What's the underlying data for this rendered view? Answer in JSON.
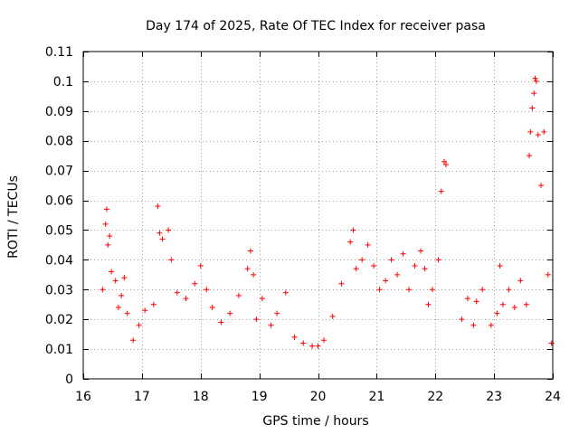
{
  "chart_data": {
    "type": "scatter",
    "title": "Day 174 of 2025, Rate Of TEC Index for receiver pasa",
    "xlabel": "GPS time / hours",
    "ylabel": "ROTI / TECUs",
    "xlim": [
      16,
      24
    ],
    "ylim": [
      0,
      0.11
    ],
    "xticks": [
      16,
      17,
      18,
      19,
      20,
      21,
      22,
      23,
      24
    ],
    "xtick_labels": [
      "16",
      "17",
      "18",
      "19",
      "20",
      "21",
      "22",
      "23",
      "24"
    ],
    "yticks": [
      0,
      0.01,
      0.02,
      0.03,
      0.04,
      0.05,
      0.06,
      0.07,
      0.08,
      0.09,
      0.1,
      0.11
    ],
    "ytick_labels": [
      "0",
      "0.01",
      "0.02",
      "0.03",
      "0.04",
      "0.05",
      "0.06",
      "0.07",
      "0.08",
      "0.09",
      "0.1",
      "0.11"
    ],
    "grid": true,
    "marker": "+",
    "marker_color": "#ff0000",
    "series": [
      {
        "name": "ROTI",
        "x": [
          16.33,
          16.38,
          16.4,
          16.42,
          16.45,
          16.48,
          16.55,
          16.6,
          16.65,
          16.7,
          16.75,
          16.85,
          16.95,
          17.05,
          17.2,
          17.27,
          17.3,
          17.35,
          17.45,
          17.5,
          17.6,
          17.75,
          17.9,
          18.0,
          18.1,
          18.2,
          18.35,
          18.5,
          18.65,
          18.8,
          18.85,
          18.9,
          18.95,
          19.05,
          19.2,
          19.3,
          19.45,
          19.6,
          19.75,
          19.9,
          20.0,
          20.1,
          20.25,
          20.4,
          20.55,
          20.6,
          20.65,
          20.75,
          20.85,
          20.95,
          21.05,
          21.15,
          21.25,
          21.35,
          21.45,
          21.55,
          21.65,
          21.75,
          21.82,
          21.88,
          21.95,
          22.05,
          22.1,
          22.15,
          22.18,
          22.45,
          22.55,
          22.65,
          22.7,
          22.8,
          22.95,
          23.05,
          23.1,
          23.15,
          23.25,
          23.35,
          23.45,
          23.55,
          23.6,
          23.62,
          23.65,
          23.68,
          23.7,
          23.72,
          23.75,
          23.8,
          23.85,
          23.92,
          23.98
        ],
        "y": [
          0.03,
          0.052,
          0.057,
          0.045,
          0.048,
          0.036,
          0.033,
          0.024,
          0.028,
          0.034,
          0.022,
          0.013,
          0.018,
          0.023,
          0.025,
          0.058,
          0.049,
          0.047,
          0.05,
          0.04,
          0.029,
          0.027,
          0.032,
          0.038,
          0.03,
          0.024,
          0.019,
          0.022,
          0.028,
          0.037,
          0.043,
          0.035,
          0.02,
          0.027,
          0.018,
          0.022,
          0.029,
          0.014,
          0.012,
          0.011,
          0.011,
          0.013,
          0.021,
          0.032,
          0.046,
          0.05,
          0.037,
          0.04,
          0.045,
          0.038,
          0.03,
          0.033,
          0.04,
          0.035,
          0.042,
          0.03,
          0.038,
          0.043,
          0.037,
          0.025,
          0.03,
          0.04,
          0.063,
          0.073,
          0.072,
          0.02,
          0.027,
          0.018,
          0.026,
          0.03,
          0.018,
          0.022,
          0.038,
          0.025,
          0.03,
          0.024,
          0.033,
          0.025,
          0.075,
          0.083,
          0.091,
          0.096,
          0.101,
          0.1,
          0.082,
          0.065,
          0.083,
          0.035,
          0.012
        ]
      }
    ]
  }
}
